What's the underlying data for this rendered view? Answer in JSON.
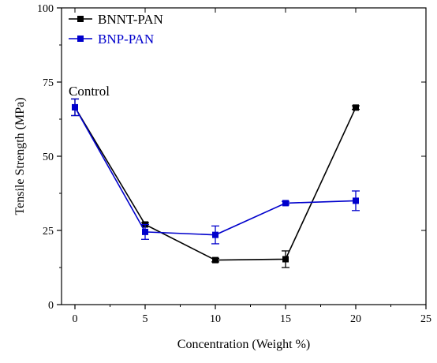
{
  "chart_data": {
    "type": "line",
    "xlabel": "Concentration (Weight %)",
    "ylabel": "Tensile Strength (MPa)",
    "xlim": [
      -2.5,
      25
    ],
    "ylim": [
      0,
      100
    ],
    "xticks": [
      0,
      5,
      10,
      15,
      20,
      25
    ],
    "yticks": [
      0,
      25,
      50,
      75,
      100
    ],
    "grid": false,
    "legend_position": "top-left",
    "annotations": [
      {
        "text": "Control",
        "x": 0,
        "y": 70.5
      }
    ],
    "series": [
      {
        "name": "BNNT-PAN",
        "color": "#000000",
        "x": [
          0,
          5,
          10,
          15,
          20
        ],
        "y": [
          66.5,
          27.0,
          15.0,
          15.3,
          66.4
        ],
        "yerr": [
          2.8,
          0.6,
          0.6,
          2.8,
          0.6
        ]
      },
      {
        "name": "BNP-PAN",
        "color": "#0000cc",
        "x": [
          0,
          5,
          10,
          15,
          20
        ],
        "y": [
          66.5,
          24.5,
          23.5,
          34.2,
          35.0
        ],
        "yerr": [
          2.8,
          2.5,
          3.0,
          0.6,
          3.3
        ]
      }
    ]
  }
}
